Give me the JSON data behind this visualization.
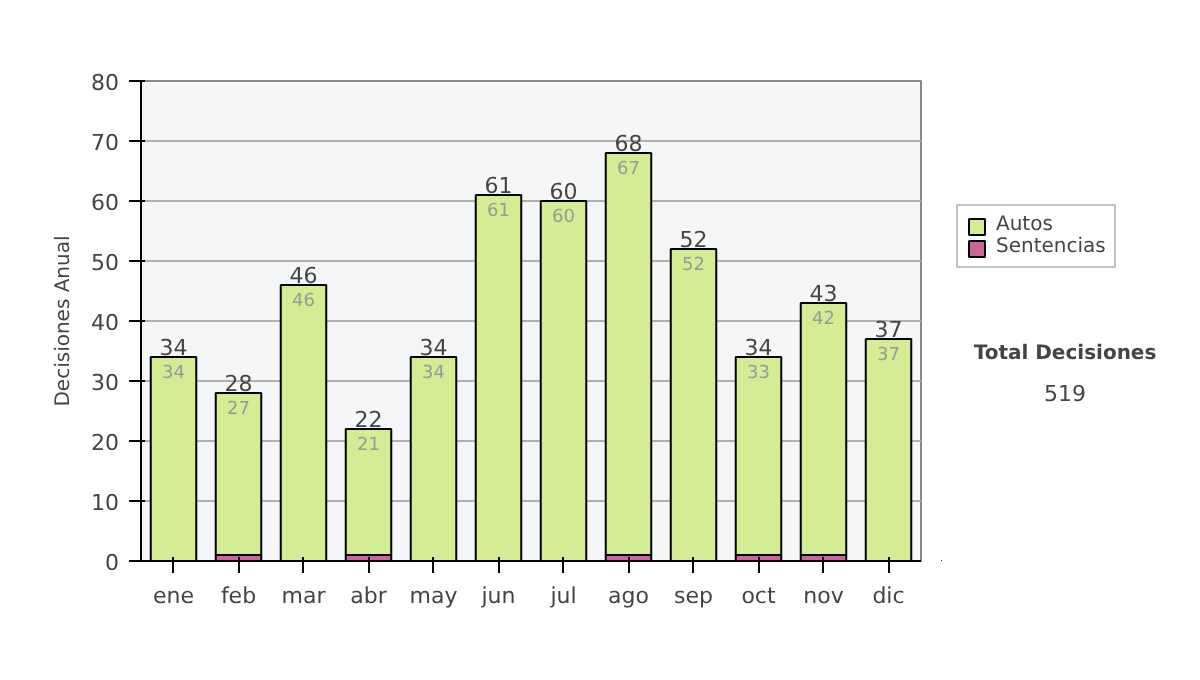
{
  "chart_data": {
    "type": "bar",
    "ylabel": "Decisiones Anual",
    "categories": [
      "ene",
      "feb",
      "mar",
      "abr",
      "may",
      "jun",
      "jul",
      "ago",
      "sep",
      "oct",
      "nov",
      "dic"
    ],
    "stacked": true,
    "series": [
      {
        "name": "Sentencias",
        "color": "#cc6699",
        "values": [
          0,
          1,
          0,
          1,
          0,
          0,
          0,
          1,
          0,
          1,
          1,
          0
        ]
      },
      {
        "name": "Autos",
        "color": "#d4ec94",
        "values": [
          34,
          27,
          46,
          21,
          34,
          61,
          60,
          67,
          52,
          33,
          42,
          37
        ],
        "value_labels": [
          "34",
          "27",
          "46",
          "21",
          "34",
          "61",
          "60",
          "67",
          "52",
          "33",
          "42",
          "37"
        ]
      }
    ],
    "totals": [
      "34",
      "28",
      "46",
      "22",
      "34",
      "61",
      "60",
      "68",
      "52",
      "34",
      "43",
      "37"
    ],
    "ylim": [
      0,
      80
    ],
    "yticks": [
      0,
      10,
      20,
      30,
      40,
      50,
      60,
      70,
      80
    ],
    "grid": "y",
    "legend": "right",
    "annotations": [
      "Total Decisiones",
      "519"
    ]
  }
}
